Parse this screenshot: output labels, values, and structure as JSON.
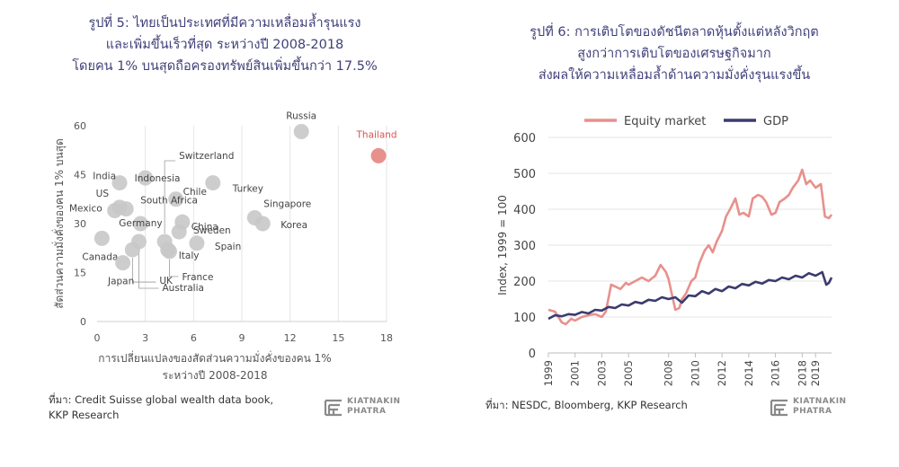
{
  "left": {
    "title_lines": [
      "รูปที่ 5: ไทยเป็นประเทศที่มีความเหลื่อมล้ำรุนแรง",
      "และเพิ่มขึ้นเร็วที่สุด ระหว่างปี 2008-2018",
      "โดยคน 1% บนสุดถือครองทรัพย์สินเพิ่มขึ้นกว่า 17.5%"
    ],
    "source_lines": [
      "ที่มา: Credit Suisse global wealth data book,",
      "KKP Research"
    ],
    "logo": {
      "line1": "KIATNAKIN",
      "line2": "PHATRA"
    }
  },
  "right": {
    "title_lines": [
      "รูปที่ 6: การเติบโตของดัชนีตลาดหุ้นตั้งแต่หลังวิกฤต",
      "สูงกว่าการเติบโตของเศรษฐกิจมาก",
      "ส่งผลให้ความเหลื่อมล้ำด้านความมั่งคั่งรุนแรงขึ้น"
    ],
    "source_line": "ที่มา: NESDC, Bloomberg, KKP Research",
    "logo": {
      "line1": "KIATNAKIN",
      "line2": "PHATRA"
    }
  },
  "chart_data": [
    {
      "type": "scatter",
      "xlabel_lines": [
        "การเปลี่ยนแปลงของสัดส่วนความมั่งคั่งของคน 1%",
        "ระหว่างปี 2008-2018"
      ],
      "ylabel": "สัดส่วนความมั่งคั่งของคน 1% บนสุด",
      "xlim": [
        0,
        18
      ],
      "ylim": [
        0,
        60
      ],
      "xticks": [
        0,
        3,
        6,
        9,
        12,
        15,
        18
      ],
      "yticks": [
        0,
        15,
        30,
        45,
        60
      ],
      "grid": "vertical",
      "colors": {
        "point": "#c8c8c8",
        "highlight": "#e8908c",
        "highlight_label": "#d9534f"
      },
      "points": [
        {
          "label": "Russia",
          "x": 12.7,
          "y": 58.2
        },
        {
          "label": "Thailand",
          "x": 17.5,
          "y": 50.8,
          "highlight": true
        },
        {
          "label": "India",
          "x": 1.4,
          "y": 42.5
        },
        {
          "label": "Indonesia",
          "x": 3.0,
          "y": 44.0
        },
        {
          "label": "Turkey",
          "x": 7.2,
          "y": 42.5
        },
        {
          "label": "Chile",
          "x": 4.9,
          "y": 37.5
        },
        {
          "label": "US",
          "x": 1.4,
          "y": 35.0
        },
        {
          "label": "Mexico",
          "x": 1.1,
          "y": 34.0
        },
        {
          "label": "South Africa",
          "x": 1.8,
          "y": 34.5
        },
        {
          "label": "Singapore",
          "x": 9.8,
          "y": 31.8
        },
        {
          "label": "China",
          "x": 5.3,
          "y": 30.5
        },
        {
          "label": "Korea",
          "x": 10.3,
          "y": 30.0
        },
        {
          "label": "Germany",
          "x": 2.7,
          "y": 30.0
        },
        {
          "label": "Sweden",
          "x": 5.1,
          "y": 27.5
        },
        {
          "label": "Canada",
          "x": 0.3,
          "y": 25.5
        },
        {
          "label": "Switzerland",
          "x": 4.2,
          "y": 24.5
        },
        {
          "label": "Spain",
          "x": 6.2,
          "y": 24.0
        },
        {
          "label": "Italy",
          "x": 4.4,
          "y": 22.0
        },
        {
          "label": "Australia",
          "x": 2.6,
          "y": 24.5
        },
        {
          "label": "UK",
          "x": 2.2,
          "y": 22.0
        },
        {
          "label": "France",
          "x": 4.5,
          "y": 21.5
        },
        {
          "label": "Japan",
          "x": 1.6,
          "y": 18.0
        }
      ]
    },
    {
      "type": "line",
      "ylabel": "Index, 1999 = 100",
      "xlim": [
        1999,
        2020.2
      ],
      "ylim": [
        0,
        600
      ],
      "xticks": [
        1999,
        2001,
        2003,
        2005,
        2008,
        2010,
        2012,
        2014,
        2016,
        2018,
        2019
      ],
      "yticks": [
        0,
        100,
        200,
        300,
        400,
        500,
        600
      ],
      "grid": "horizontal",
      "series": [
        {
          "name": "Equity market",
          "color": "#e8908c",
          "x": [
            1999,
            1999.5,
            2000,
            2000.3,
            2000.7,
            2001,
            2001.5,
            2002,
            2002.5,
            2003,
            2003.3,
            2003.7,
            2004,
            2004.4,
            2004.8,
            2005,
            2005.5,
            2006,
            2006.5,
            2007,
            2007.4,
            2007.8,
            2008,
            2008.5,
            2008.8,
            2009,
            2009.3,
            2009.7,
            2010,
            2010.3,
            2010.7,
            2011,
            2011.3,
            2011.6,
            2012,
            2012.3,
            2012.6,
            2013,
            2013.3,
            2013.6,
            2014,
            2014.3,
            2014.7,
            2015,
            2015.3,
            2015.7,
            2016,
            2016.3,
            2016.7,
            2017,
            2017.3,
            2017.7,
            2018,
            2018.3,
            2018.6,
            2019,
            2019.4,
            2019.7,
            2020,
            2020.2
          ],
          "y": [
            120,
            115,
            85,
            80,
            95,
            90,
            100,
            105,
            108,
            100,
            115,
            190,
            185,
            178,
            195,
            190,
            200,
            210,
            200,
            215,
            245,
            225,
            205,
            120,
            125,
            150,
            165,
            200,
            210,
            250,
            285,
            300,
            280,
            310,
            340,
            380,
            400,
            430,
            385,
            390,
            380,
            430,
            440,
            435,
            420,
            385,
            390,
            420,
            430,
            440,
            460,
            480,
            510,
            470,
            480,
            460,
            470,
            380,
            375,
            385
          ]
        },
        {
          "name": "GDP",
          "color": "#3b3b6e",
          "x": [
            1999,
            1999.5,
            2000,
            2000.5,
            2001,
            2001.5,
            2002,
            2002.5,
            2003,
            2003.5,
            2004,
            2004.5,
            2005,
            2005.5,
            2006,
            2006.5,
            2007,
            2007.5,
            2008,
            2008.5,
            2009,
            2009.5,
            2010,
            2010.5,
            2011,
            2011.5,
            2012,
            2012.5,
            2013,
            2013.5,
            2014,
            2014.5,
            2015,
            2015.5,
            2016,
            2016.5,
            2017,
            2017.5,
            2018,
            2018.5,
            2019,
            2019.5,
            2019.8,
            2020,
            2020.2
          ],
          "y": [
            95,
            105,
            102,
            108,
            106,
            114,
            110,
            120,
            118,
            128,
            125,
            135,
            132,
            142,
            138,
            148,
            145,
            155,
            150,
            155,
            140,
            160,
            158,
            172,
            165,
            178,
            172,
            185,
            180,
            192,
            188,
            198,
            193,
            203,
            200,
            210,
            205,
            215,
            210,
            222,
            215,
            225,
            190,
            195,
            210
          ]
        }
      ]
    }
  ]
}
